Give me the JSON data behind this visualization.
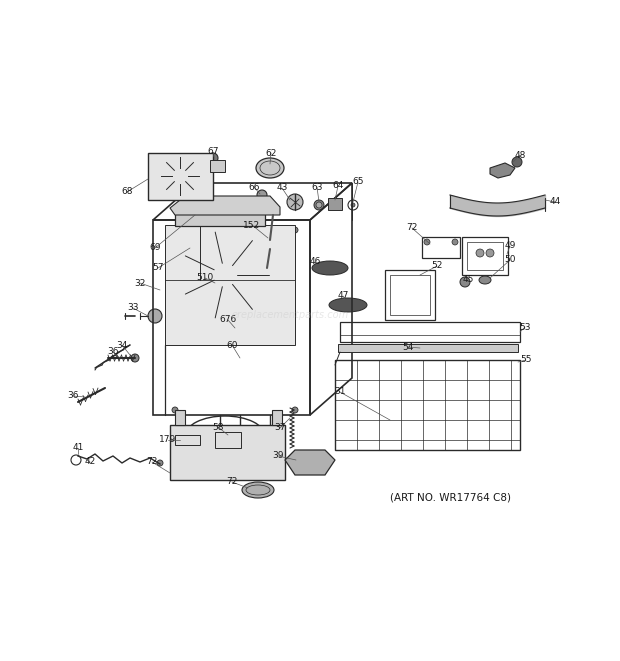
{
  "art_no": "(ART NO. WR17764 C8)",
  "bg": "#ffffff",
  "lc": "#2a2a2a",
  "tc": "#1a1a1a",
  "watermark": "ereplacementparts.com",
  "fig_w": 6.2,
  "fig_h": 6.61,
  "dpi": 100
}
